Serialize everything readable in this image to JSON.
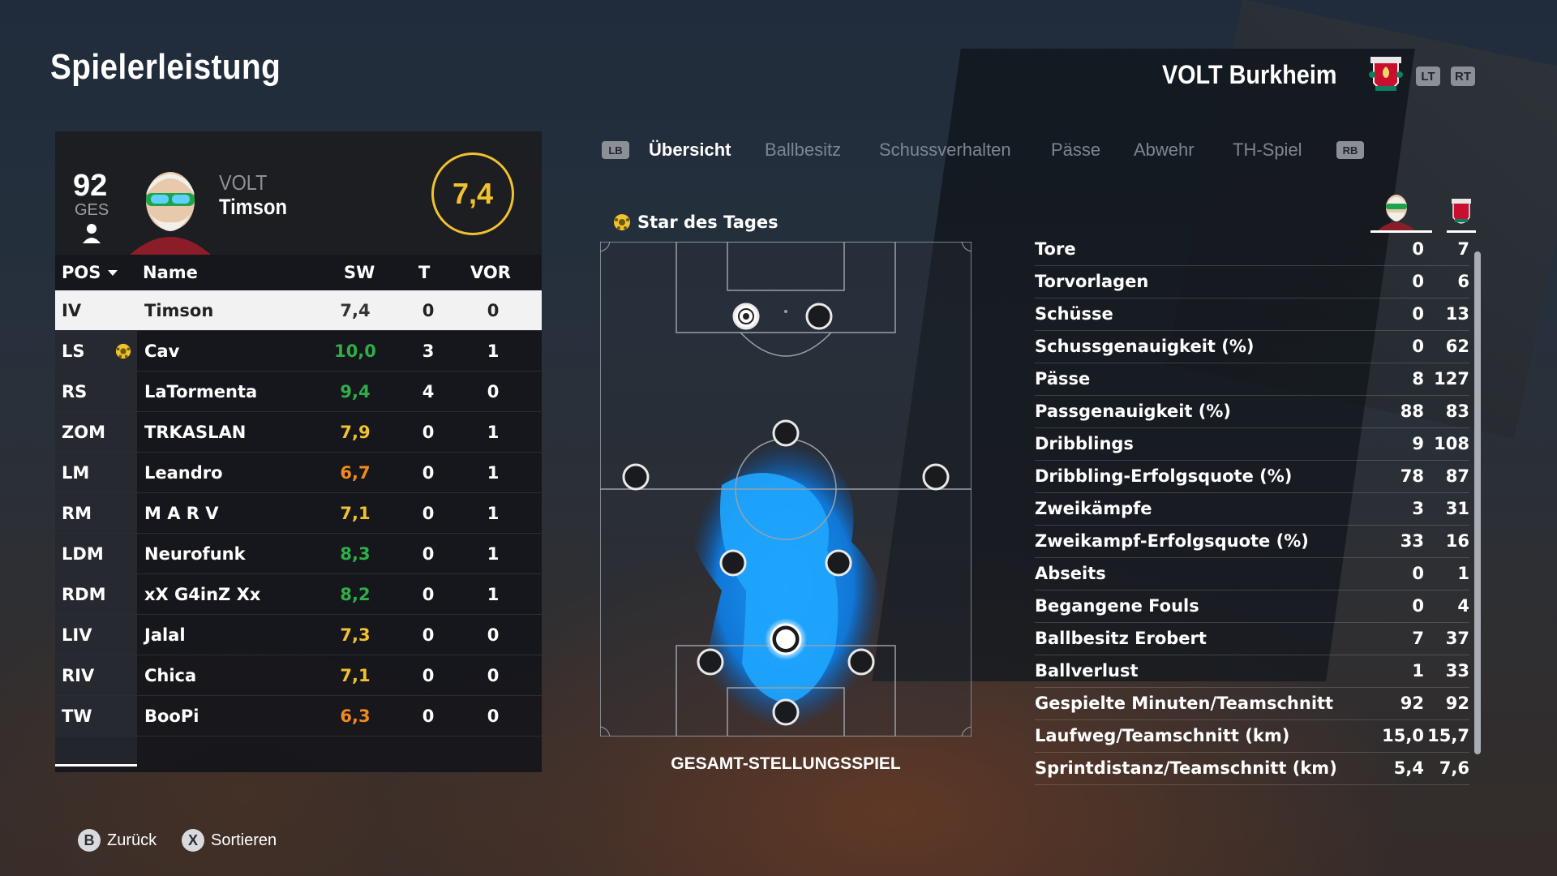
{
  "header": {
    "title": "Spielerleistung",
    "team_name": "VOLT Burkheim",
    "lt": "LT",
    "rt": "RT"
  },
  "player": {
    "ges": "92",
    "ges_label": "GES",
    "team_short": "VOLT",
    "name": "Timson",
    "rating": "7,4"
  },
  "table": {
    "headers": {
      "pos": "POS",
      "name": "Name",
      "sw": "SW",
      "t": "T",
      "vor": "VOR"
    },
    "rows": [
      {
        "pos": "IV",
        "name": "Timson",
        "sw": "7,4",
        "t": "0",
        "vor": "0",
        "color": "#333333",
        "star": false
      },
      {
        "pos": "LS",
        "name": "Cav",
        "sw": "10,0",
        "t": "3",
        "vor": "1",
        "color": "#2fae46",
        "star": true
      },
      {
        "pos": "RS",
        "name": "LaTormenta",
        "sw": "9,4",
        "t": "4",
        "vor": "0",
        "color": "#2fae46",
        "star": false
      },
      {
        "pos": "ZOM",
        "name": "TRKASLAN",
        "sw": "7,9",
        "t": "0",
        "vor": "1",
        "color": "#f2c12e",
        "star": false
      },
      {
        "pos": "LM",
        "name": "Leandro",
        "sw": "6,7",
        "t": "0",
        "vor": "1",
        "color": "#f08a1c",
        "star": false
      },
      {
        "pos": "RM",
        "name": "M A R V",
        "sw": "7,1",
        "t": "0",
        "vor": "1",
        "color": "#f2c12e",
        "star": false
      },
      {
        "pos": "LDM",
        "name": "Neurofunk",
        "sw": "8,3",
        "t": "0",
        "vor": "1",
        "color": "#2fae46",
        "star": false
      },
      {
        "pos": "RDM",
        "name": "xX G4inZ Xx",
        "sw": "8,2",
        "t": "0",
        "vor": "1",
        "color": "#2fae46",
        "star": false
      },
      {
        "pos": "LIV",
        "name": "Jalal",
        "sw": "7,3",
        "t": "0",
        "vor": "0",
        "color": "#f2c12e",
        "star": false
      },
      {
        "pos": "RIV",
        "name": "Chica",
        "sw": "7,1",
        "t": "0",
        "vor": "0",
        "color": "#f2c12e",
        "star": false
      },
      {
        "pos": "TW",
        "name": "BooPi",
        "sw": "6,3",
        "t": "0",
        "vor": "0",
        "color": "#f08a1c",
        "star": false
      }
    ]
  },
  "tabs": {
    "lb": "LB",
    "rb": "RB",
    "items": [
      "Übersicht",
      "Ballbesitz",
      "Schussverhalten",
      "Pässe",
      "Abwehr",
      "TH-Spiel"
    ]
  },
  "star_of_day": "Star des Tages",
  "pitch_label": "GESAMT-STELLUNGSSPIEL",
  "stats": [
    {
      "label": "Tore",
      "player": "0",
      "team": "7"
    },
    {
      "label": "Torvorlagen",
      "player": "0",
      "team": "6"
    },
    {
      "label": "Schüsse",
      "player": "0",
      "team": "13"
    },
    {
      "label": "Schussgenauigkeit (%)",
      "player": "0",
      "team": "62"
    },
    {
      "label": "Pässe",
      "player": "8",
      "team": "127"
    },
    {
      "label": "Passgenauigkeit (%)",
      "player": "88",
      "team": "83"
    },
    {
      "label": "Dribblings",
      "player": "9",
      "team": "108"
    },
    {
      "label": "Dribbling-Erfolgsquote (%)",
      "player": "78",
      "team": "87"
    },
    {
      "label": "Zweikämpfe",
      "player": "3",
      "team": "31"
    },
    {
      "label": "Zweikampf-Erfolgsquote (%)",
      "player": "33",
      "team": "16"
    },
    {
      "label": "Abseits",
      "player": "0",
      "team": "1"
    },
    {
      "label": "Begangene Fouls",
      "player": "0",
      "team": "4"
    },
    {
      "label": "Ballbesitz Erobert",
      "player": "7",
      "team": "37"
    },
    {
      "label": "Ballverlust",
      "player": "1",
      "team": "33"
    },
    {
      "label": "Gespielte Minuten/Teamschnitt",
      "player": "92",
      "team": "92"
    },
    {
      "label": "Laufweg/Teamschnitt (km)",
      "player": "15,0",
      "team": "15,7"
    },
    {
      "label": "Sprintdistanz/Teamschnitt (km)",
      "player": "5,4",
      "team": "7,6"
    }
  ],
  "footer": {
    "back_key": "B",
    "back": "Zurück",
    "sort_key": "X",
    "sort": "Sortieren"
  }
}
